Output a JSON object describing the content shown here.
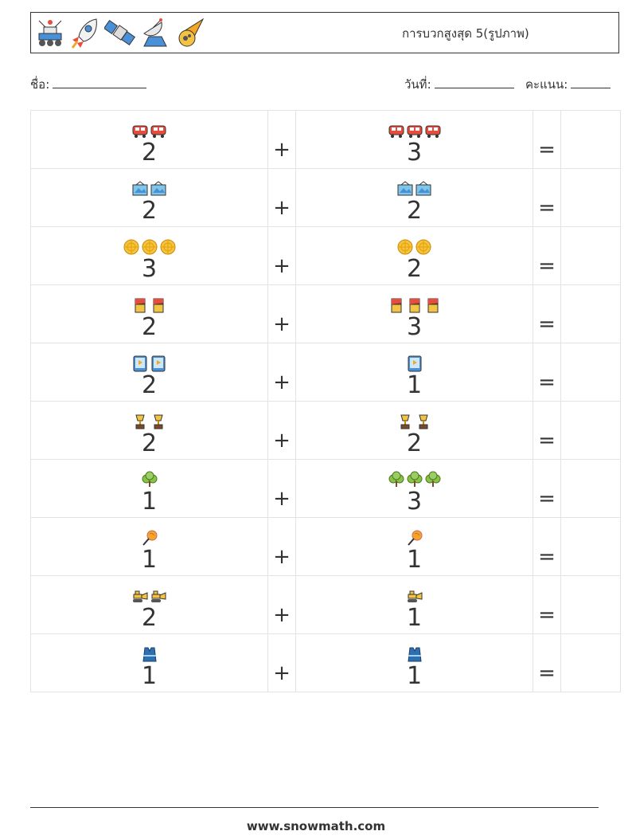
{
  "header": {
    "title": "การบวกสูงสุด 5(รูปภาพ)",
    "icons": [
      "robot-rover-icon",
      "rocket-icon",
      "satellite-icon",
      "satellite-dish-icon",
      "comet-icon"
    ]
  },
  "info": {
    "name_label": "ชื่อ:",
    "date_label": "วันที่:",
    "score_label": "คะแนน:"
  },
  "operators": {
    "plus": "+",
    "equals": "="
  },
  "rows": [
    {
      "a": "2",
      "b": "3",
      "icon": "tram"
    },
    {
      "a": "2",
      "b": "2",
      "icon": "painting"
    },
    {
      "a": "3",
      "b": "2",
      "icon": "orange"
    },
    {
      "a": "2",
      "b": "3",
      "icon": "chocolate"
    },
    {
      "a": "2",
      "b": "1",
      "icon": "tablet"
    },
    {
      "a": "2",
      "b": "2",
      "icon": "trophy"
    },
    {
      "a": "1",
      "b": "3",
      "icon": "tree"
    },
    {
      "a": "1",
      "b": "1",
      "icon": "lollipop"
    },
    {
      "a": "2",
      "b": "1",
      "icon": "bulldozer"
    },
    {
      "a": "1",
      "b": "1",
      "icon": "vest"
    }
  ],
  "footer": {
    "url": "www.snowmath.com"
  }
}
